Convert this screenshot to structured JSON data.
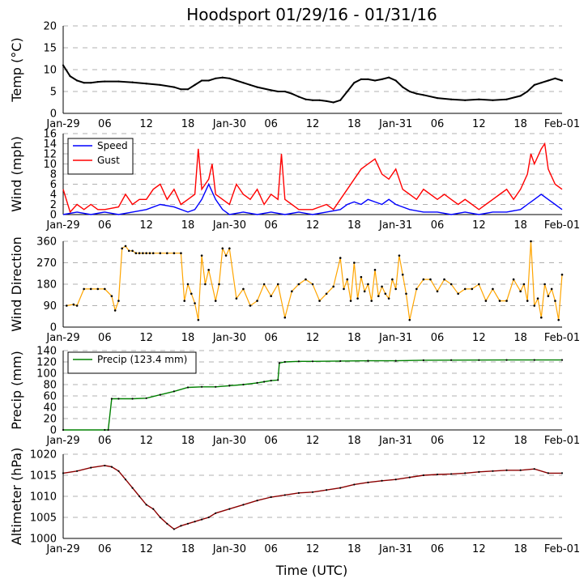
{
  "title": "Hoodsport 01/29/16 - 01/31/16",
  "xlabel": "Time (UTC)",
  "x_ticks": [
    "Jan-29",
    "06",
    "12",
    "18",
    "Jan-30",
    "06",
    "12",
    "18",
    "Jan-31",
    "06",
    "12",
    "18",
    "Feb-01"
  ],
  "x_tick_hours": [
    0,
    6,
    12,
    18,
    24,
    30,
    36,
    42,
    48,
    54,
    60,
    66,
    72
  ],
  "colors": {
    "temp": "#000000",
    "speed": "#0000ff",
    "gust": "#ff0000",
    "direction": "#ffa500",
    "precip": "#008000",
    "altimeter": "#8b0000",
    "marker": "#000000",
    "grid": "#b0b0b0"
  },
  "chart_data": [
    {
      "type": "line",
      "id": "temp",
      "ylabel": "Temp ($^\\circ$C)",
      "ylabel_display": "Temp (°C)",
      "ylim": [
        0,
        20
      ],
      "y_ticks": [
        "0",
        "5",
        "10",
        "15",
        "20"
      ],
      "y_tick_values": [
        0,
        5,
        10,
        15,
        20
      ],
      "series": [
        {
          "name": "Temp",
          "x_hours": [
            0,
            1,
            2,
            3,
            4,
            5,
            6,
            8,
            10,
            12,
            14,
            16,
            17,
            18,
            19,
            20,
            21,
            22,
            23,
            24,
            25,
            26,
            27,
            28,
            30,
            31,
            32,
            33,
            34,
            35,
            36,
            37,
            38,
            39,
            40,
            41,
            42,
            43,
            44,
            45,
            46,
            47,
            48,
            49,
            50,
            51,
            52,
            54,
            56,
            58,
            60,
            62,
            64,
            66,
            67,
            68,
            69,
            70,
            71,
            72
          ],
          "values": [
            11,
            8.5,
            7.5,
            7,
            7,
            7.2,
            7.3,
            7.3,
            7.1,
            6.8,
            6.5,
            6,
            5.5,
            5.5,
            6.5,
            7.5,
            7.5,
            8,
            8.2,
            8,
            7.5,
            7,
            6.5,
            6,
            5.3,
            5,
            5,
            4.5,
            3.8,
            3.2,
            3,
            3,
            2.8,
            2.5,
            3,
            5,
            7,
            7.8,
            7.8,
            7.5,
            7.8,
            8.2,
            7.5,
            6,
            5,
            4.5,
            4.2,
            3.5,
            3.2,
            3,
            3.2,
            3,
            3.2,
            4,
            5,
            6.5,
            7,
            7.5,
            8,
            7.5
          ]
        }
      ]
    },
    {
      "type": "line",
      "id": "wind",
      "ylabel": "Wind (mph)",
      "ylim": [
        0,
        16
      ],
      "y_ticks": [
        "0",
        "2",
        "4",
        "6",
        "8",
        "10",
        "12",
        "14",
        "16"
      ],
      "y_tick_values": [
        0,
        2,
        4,
        6,
        8,
        10,
        12,
        14,
        16
      ],
      "legend": [
        "Speed",
        "Gust"
      ],
      "series": [
        {
          "name": "Speed",
          "x_hours": [
            0,
            2,
            4,
            6,
            8,
            10,
            12,
            14,
            16,
            18,
            19,
            20,
            21,
            22,
            23,
            24,
            26,
            28,
            30,
            32,
            34,
            36,
            38,
            40,
            41,
            42,
            43,
            44,
            45,
            46,
            47,
            48,
            49,
            50,
            52,
            54,
            56,
            58,
            60,
            62,
            64,
            66,
            67,
            68,
            69,
            70,
            71,
            72
          ],
          "values": [
            0,
            0.5,
            0,
            0.5,
            0,
            0.5,
            1,
            2,
            1.5,
            0.5,
            1,
            3,
            6,
            3,
            1,
            0,
            0.5,
            0,
            0.5,
            0,
            0.5,
            0,
            0.5,
            1,
            2,
            2.5,
            2,
            3,
            2.5,
            2,
            3,
            2,
            1.5,
            1,
            0.5,
            0.5,
            0,
            0.5,
            0,
            0.5,
            0.5,
            1,
            2,
            3,
            4,
            3,
            2,
            1
          ]
        },
        {
          "name": "Gust",
          "x_hours": [
            0,
            1,
            2,
            3,
            4,
            5,
            6,
            8,
            9,
            10,
            11,
            12,
            13,
            14,
            15,
            16,
            17,
            18,
            19,
            19.5,
            20,
            21,
            21.5,
            22,
            23,
            24,
            25,
            26,
            27,
            28,
            29,
            30,
            31,
            31.5,
            32,
            33,
            34,
            35,
            36,
            37,
            38,
            39,
            40,
            41,
            42,
            43,
            44,
            45,
            46,
            47,
            48,
            49,
            50,
            51,
            52,
            53,
            54,
            55,
            56,
            57,
            58,
            59,
            60,
            61,
            62,
            63,
            64,
            65,
            66,
            67,
            67.5,
            68,
            69,
            69.5,
            70,
            71,
            72
          ],
          "values": [
            5,
            0.5,
            2,
            1,
            2,
            1,
            1,
            1.5,
            4,
            2,
            3,
            3,
            5,
            6,
            3,
            5,
            2,
            3,
            4,
            13,
            5,
            7,
            10,
            4,
            3,
            2,
            6,
            4,
            3,
            5,
            2,
            4,
            3,
            12,
            3,
            2,
            1,
            1,
            1,
            1.5,
            2,
            1,
            3,
            5,
            7,
            9,
            10,
            11,
            8,
            7,
            9,
            5,
            4,
            3,
            5,
            4,
            3,
            4,
            3,
            2,
            3,
            2,
            1,
            2,
            3,
            4,
            5,
            3,
            5,
            8,
            12,
            10,
            13,
            14,
            9,
            6,
            5
          ]
        }
      ]
    },
    {
      "type": "scatter",
      "id": "direction",
      "ylabel": "Wind Direction",
      "ylim": [
        0,
        360
      ],
      "y_ticks": [
        "0",
        "90",
        "180",
        "270",
        "360"
      ],
      "y_tick_values": [
        0,
        90,
        180,
        270,
        360
      ],
      "series": [
        {
          "name": "Direction",
          "x_hours": [
            0.5,
            1.5,
            2,
            3,
            4,
            5,
            6,
            7,
            7.5,
            8,
            8.5,
            9,
            9.5,
            10,
            10.5,
            11,
            11.5,
            12,
            12.5,
            13,
            14,
            15,
            16,
            17,
            17.5,
            18,
            18.5,
            19,
            19.5,
            20,
            20.5,
            21,
            22,
            22.5,
            23,
            23.5,
            24,
            25,
            26,
            27,
            28,
            29,
            30,
            31,
            32,
            33,
            34,
            35,
            36,
            37,
            38,
            39,
            40,
            40.5,
            41,
            41.5,
            42,
            42.5,
            43,
            43.5,
            44,
            44.5,
            45,
            45.5,
            46,
            46.5,
            47,
            47.5,
            48,
            48.5,
            49,
            49.5,
            50,
            51,
            52,
            53,
            54,
            55,
            56,
            57,
            58,
            59,
            60,
            61,
            62,
            63,
            64,
            65,
            66,
            66.5,
            67,
            67.5,
            68,
            68.5,
            69,
            69.5,
            70,
            70.5,
            71,
            71.5,
            72
          ],
          "values": [
            90,
            95,
            90,
            160,
            160,
            160,
            160,
            130,
            70,
            110,
            330,
            340,
            320,
            320,
            310,
            310,
            310,
            310,
            310,
            310,
            310,
            310,
            310,
            310,
            110,
            180,
            140,
            100,
            30,
            300,
            180,
            240,
            110,
            180,
            330,
            300,
            330,
            120,
            160,
            90,
            110,
            180,
            130,
            180,
            40,
            150,
            180,
            200,
            180,
            110,
            140,
            170,
            290,
            160,
            200,
            110,
            270,
            120,
            210,
            150,
            180,
            110,
            240,
            130,
            170,
            140,
            120,
            200,
            160,
            300,
            220,
            140,
            30,
            160,
            200,
            200,
            150,
            200,
            180,
            140,
            160,
            160,
            180,
            110,
            160,
            110,
            110,
            200,
            150,
            180,
            110,
            360,
            90,
            120,
            40,
            180,
            130,
            160,
            110,
            30,
            220
          ]
        }
      ]
    },
    {
      "type": "area",
      "id": "precip",
      "ylabel": "Precip (mm)",
      "ylim": [
        0,
        140
      ],
      "y_ticks": [
        "0",
        "20",
        "40",
        "60",
        "80",
        "100",
        "120",
        "140"
      ],
      "y_tick_values": [
        0,
        20,
        40,
        60,
        80,
        100,
        120,
        140
      ],
      "legend": [
        "Precip (123.4 mm)"
      ],
      "series": [
        {
          "name": "Precip (123.4 mm)",
          "x_hours": [
            0,
            6,
            6.5,
            7,
            8,
            10,
            12,
            14,
            16,
            18,
            20,
            22,
            24,
            26,
            28,
            29,
            30,
            31,
            31.2,
            32,
            34,
            36,
            40,
            44,
            48,
            52,
            56,
            60,
            64,
            68,
            72
          ],
          "values": [
            0,
            0,
            0,
            55,
            55,
            55,
            56,
            62,
            68,
            75,
            76,
            76,
            78,
            80,
            83,
            85,
            87,
            88,
            118,
            120,
            121,
            121,
            121.5,
            122,
            122,
            123,
            123.2,
            123.3,
            123.4,
            123.4,
            123.4
          ]
        }
      ]
    },
    {
      "type": "line",
      "id": "altimeter",
      "ylabel": "Altimeter (hPa)",
      "ylim": [
        1000,
        1020
      ],
      "y_ticks": [
        "1000",
        "1005",
        "1010",
        "1015",
        "1020"
      ],
      "y_tick_values": [
        1000,
        1005,
        1010,
        1015,
        1020
      ],
      "series": [
        {
          "name": "Altimeter",
          "x_hours": [
            0,
            2,
            4,
            6,
            7,
            8,
            9,
            10,
            11,
            12,
            13,
            14,
            15,
            16,
            17,
            18,
            19,
            20,
            21,
            22,
            24,
            26,
            28,
            30,
            32,
            34,
            36,
            38,
            40,
            42,
            44,
            46,
            48,
            50,
            52,
            54,
            56,
            58,
            60,
            62,
            64,
            66,
            68,
            70,
            72
          ],
          "values": [
            1015.5,
            1016,
            1016.8,
            1017.3,
            1017,
            1016,
            1014,
            1012,
            1010,
            1008,
            1007,
            1005,
            1003.5,
            1002.2,
            1003,
            1003.5,
            1004,
            1004.5,
            1005,
            1006,
            1007,
            1008,
            1009,
            1009.8,
            1010.3,
            1010.8,
            1011,
            1011.5,
            1012,
            1012.8,
            1013.3,
            1013.7,
            1014,
            1014.5,
            1015,
            1015.2,
            1015.3,
            1015.5,
            1015.8,
            1016,
            1016.2,
            1016.2,
            1016.5,
            1015.5,
            1015.5
          ]
        }
      ]
    }
  ]
}
